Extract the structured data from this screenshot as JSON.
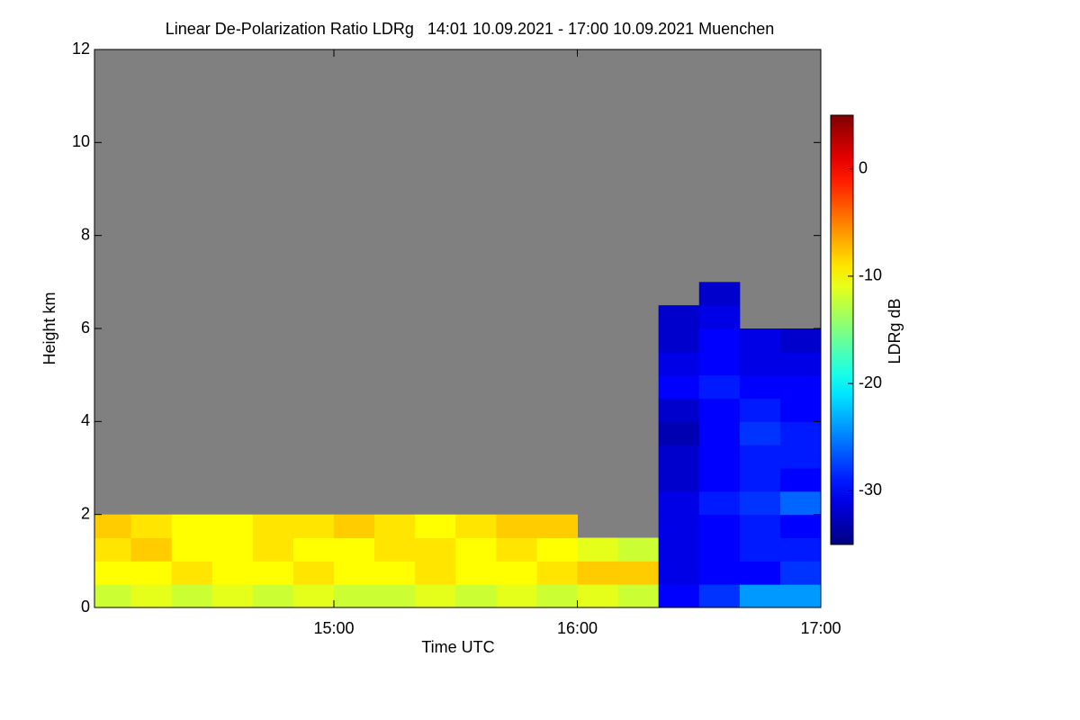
{
  "chart_data": {
    "type": "heatmap",
    "title": "Linear De-Polarization Ratio LDRg   14:01 10.09.2021 - 17:00 10.09.2021 Muenchen",
    "xlabel": "Time UTC",
    "ylabel": "Height km",
    "colorbar_label": "LDRg dB",
    "x_bins": [
      14.0167,
      14.1667,
      14.3333,
      14.5,
      14.6667,
      14.8333,
      15,
      15.1667,
      15.3333,
      15.5,
      15.6667,
      15.8333,
      16,
      16.1667,
      16.3333,
      16.5,
      16.6667,
      16.8333,
      17
    ],
    "y_bins": [
      0,
      0.5,
      1,
      1.5,
      2,
      2.5,
      3,
      3.5,
      4,
      4.5,
      5,
      5.5,
      6,
      6.5,
      7
    ],
    "z": [
      [
        -12,
        -11,
        -12,
        -11,
        -12,
        -11,
        -12,
        -12,
        -11,
        -12,
        -11,
        -12,
        -11,
        -12,
        -30,
        -28,
        -24,
        -24
      ],
      [
        -10,
        -10,
        -9,
        -10,
        -10,
        -9,
        -10,
        -10,
        -9,
        -10,
        -10,
        -9,
        -8,
        -8,
        -31,
        -30,
        -30,
        -28
      ],
      [
        -9,
        -8,
        -10,
        -10,
        -9,
        -10,
        -10,
        -9,
        -9,
        -10,
        -9,
        -10,
        -11,
        -12,
        -31,
        -30,
        -29,
        -29
      ],
      [
        -8,
        -9,
        -10,
        -10,
        -9,
        -9,
        -8,
        -9,
        -10,
        -9,
        -8,
        -8,
        null,
        null,
        -31,
        -30,
        -29,
        -30
      ],
      [
        null,
        null,
        null,
        null,
        null,
        null,
        null,
        null,
        null,
        null,
        null,
        null,
        null,
        null,
        -31,
        -29,
        -28,
        -26
      ],
      [
        null,
        null,
        null,
        null,
        null,
        null,
        null,
        null,
        null,
        null,
        null,
        null,
        null,
        null,
        -32,
        -30,
        -29,
        -30
      ],
      [
        null,
        null,
        null,
        null,
        null,
        null,
        null,
        null,
        null,
        null,
        null,
        null,
        null,
        null,
        -32,
        -30,
        -29,
        -29
      ],
      [
        null,
        null,
        null,
        null,
        null,
        null,
        null,
        null,
        null,
        null,
        null,
        null,
        null,
        null,
        -33,
        -30,
        -28,
        -29
      ],
      [
        null,
        null,
        null,
        null,
        null,
        null,
        null,
        null,
        null,
        null,
        null,
        null,
        null,
        null,
        -32,
        -30,
        -29,
        -30
      ],
      [
        null,
        null,
        null,
        null,
        null,
        null,
        null,
        null,
        null,
        null,
        null,
        null,
        null,
        null,
        -30,
        -29,
        -30,
        -30
      ],
      [
        null,
        null,
        null,
        null,
        null,
        null,
        null,
        null,
        null,
        null,
        null,
        null,
        null,
        null,
        -31,
        -30,
        -31,
        -31
      ],
      [
        null,
        null,
        null,
        null,
        null,
        null,
        null,
        null,
        null,
        null,
        null,
        null,
        null,
        null,
        -32,
        -30,
        -31,
        -32
      ],
      [
        null,
        null,
        null,
        null,
        null,
        null,
        null,
        null,
        null,
        null,
        null,
        null,
        null,
        null,
        -32,
        -31,
        null,
        null
      ],
      [
        null,
        null,
        null,
        null,
        null,
        null,
        null,
        null,
        null,
        null,
        null,
        null,
        null,
        null,
        null,
        -32,
        null,
        null
      ]
    ],
    "xlim": [
      14.0167,
      17
    ],
    "xticks": [
      {
        "value": 15,
        "label": "15:00"
      },
      {
        "value": 16,
        "label": "16:00"
      },
      {
        "value": 17,
        "label": "17:00"
      }
    ],
    "ylim": [
      0,
      12
    ],
    "yticks": [
      0,
      2,
      4,
      6,
      8,
      10,
      12
    ],
    "zlim": [
      -35,
      5
    ],
    "zticks": [
      0,
      -10,
      -20,
      -30
    ],
    "colormap": "jet",
    "background_color": "#808080"
  }
}
